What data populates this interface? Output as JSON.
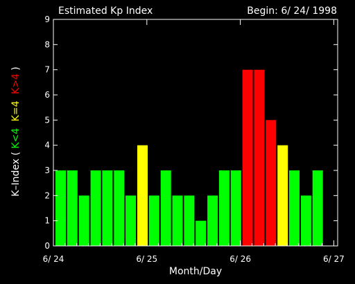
{
  "chart_data": {
    "type": "bar",
    "title_left": "Estimated Kp Index",
    "title_right": "Begin: 6/ 24/ 1998",
    "xlabel": "Month/Day",
    "ylabel": {
      "prefix": "K–Index ( ",
      "low": "K<4",
      "mid": "K=4",
      "high": "K>4",
      "suffix": " )"
    },
    "ylim": [
      0,
      9
    ],
    "yticks": [
      "0",
      "1",
      "2",
      "3",
      "4",
      "5",
      "6",
      "7",
      "8",
      "9"
    ],
    "xticks": [
      "6/ 24",
      "6/ 25",
      "6/ 26",
      "6/ 27"
    ],
    "bars_per_day": 8,
    "values": [
      3,
      3,
      2,
      3,
      3,
      3,
      2,
      4,
      2,
      3,
      2,
      2,
      1,
      2,
      3,
      3,
      7,
      7,
      5,
      4,
      3,
      2,
      3
    ],
    "colors": {
      "low": "#00ff00",
      "mid": "#ffff00",
      "high": "#ff0000",
      "axis": "#ffffff"
    }
  }
}
